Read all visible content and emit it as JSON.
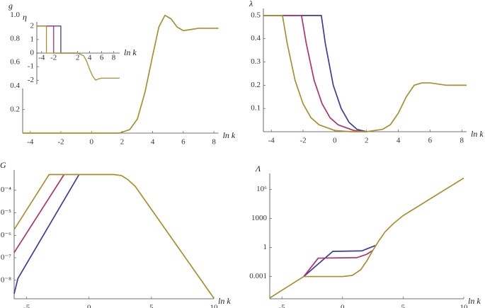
{
  "chart_data": [
    {
      "type": "line",
      "ylabel": "g",
      "xlabel": "ln k",
      "xlim": [
        -4.5,
        8.3
      ],
      "ylim": [
        0,
        1.04
      ],
      "xticks": [
        -4,
        -2,
        0,
        2,
        4,
        6,
        8
      ],
      "yticks": [
        0.2,
        0.4,
        0.6,
        0.8,
        {
          "value": 1,
          "label": "1.0"
        }
      ],
      "log_y": false,
      "series": [
        {
          "color": "#a8902e",
          "x": [
            -4.5,
            1.8,
            2.5,
            3,
            3.5,
            4,
            4.4,
            4.8,
            5.2,
            5.6,
            6,
            6.5,
            7,
            8.3
          ],
          "values": [
            0,
            0,
            0.03,
            0.12,
            0.35,
            0.66,
            0.9,
            1.0,
            0.97,
            0.9,
            0.87,
            0.88,
            0.89,
            0.89
          ]
        }
      ]
    },
    {
      "type": "line",
      "ylabel": "λ",
      "xlabel": "ln k",
      "xlim": [
        -4.5,
        8.3
      ],
      "ylim": [
        0,
        0.53
      ],
      "xticks": [
        -4,
        -2,
        0,
        2,
        4,
        6,
        8
      ],
      "yticks": [
        0.1,
        0.2,
        0.3,
        0.4,
        0.5
      ],
      "log_y": false,
      "series": [
        {
          "color": "#3b3ba0",
          "x": [
            -4.5,
            -0.85,
            -0.6,
            -0.1,
            0.4,
            0.9,
            1.4,
            2
          ],
          "values": [
            0.5,
            0.5,
            0.38,
            0.2,
            0.1,
            0.04,
            0.01,
            0
          ]
        },
        {
          "color": "#b0326c",
          "x": [
            -4.5,
            -2.1,
            -1.8,
            -1.3,
            -0.8,
            -0.3,
            0.2,
            1.2,
            2
          ],
          "values": [
            0.5,
            0.5,
            0.38,
            0.22,
            0.12,
            0.06,
            0.03,
            0.005,
            0
          ]
        },
        {
          "color": "#a8902e",
          "x": [
            -4.5,
            -3.3,
            -3,
            -2.5,
            -2,
            -1.5,
            -1,
            0,
            1,
            2,
            3,
            3.5,
            4,
            4.5,
            5,
            5.5,
            6,
            7,
            8.3
          ],
          "values": [
            0.5,
            0.5,
            0.38,
            0.22,
            0.12,
            0.06,
            0.03,
            0.005,
            0,
            0,
            0.01,
            0.03,
            0.08,
            0.15,
            0.2,
            0.21,
            0.21,
            0.2,
            0.2
          ]
        }
      ]
    },
    {
      "type": "line",
      "ylabel": "G",
      "xlabel": "ln k",
      "xlim": [
        -6,
        10
      ],
      "ylim": [
        1.5e-09,
        0.0008
      ],
      "xticks": [
        -5,
        0,
        5,
        10
      ],
      "yticks": [
        {
          "value": 1e-08,
          "label": "10⁻⁸"
        },
        {
          "value": 1e-07,
          "label": "10⁻⁷"
        },
        {
          "value": 1e-06,
          "label": "10⁻⁶"
        },
        {
          "value": 1e-05,
          "label": "10⁻⁵"
        },
        {
          "value": 0.0001,
          "label": "10⁻⁴"
        }
      ],
      "log_y": true,
      "series": [
        {
          "color": "#3b3ba0",
          "x": [
            -6,
            -5.7,
            -0.8
          ],
          "values": [
            2.5e-09,
            1.2e-08,
            0.0005
          ]
        },
        {
          "color": "#b0326c",
          "x": [
            -6,
            -2
          ],
          "values": [
            1.7e-07,
            0.0005
          ]
        },
        {
          "color": "#a8902e",
          "x": [
            -6,
            -3.2,
            2,
            2.6,
            3.1,
            3.7,
            10
          ],
          "values": [
            1.8e-06,
            0.0005,
            0.0005,
            0.00045,
            0.0003,
            0.00015,
            1.6e-09
          ]
        }
      ]
    },
    {
      "type": "line",
      "ylabel": "Λ",
      "xlabel": "ln k",
      "xlim": [
        -6,
        10
      ],
      "ylim": [
        5e-06,
        45000000
      ],
      "xticks": [
        -5,
        0,
        5,
        10
      ],
      "yticks": [
        0.001,
        1,
        1000,
        {
          "value": 1000000,
          "label": "10⁶"
        }
      ],
      "log_y": true,
      "series": [
        {
          "color": "#3b3ba0",
          "x": [
            -3.2,
            -0.8,
            1.6,
            2.2,
            2.7
          ],
          "values": [
            0.001,
            0.4,
            0.45,
            0.9,
            1.6
          ]
        },
        {
          "color": "#b0326c",
          "x": [
            -3.2,
            -2,
            1.2,
            2,
            2.5
          ],
          "values": [
            0.001,
            0.08,
            0.09,
            0.2,
            0.5
          ]
        },
        {
          "color": "#a8902e",
          "x": [
            -6,
            -3.2,
            0,
            0.8,
            1.5,
            2,
            2.5,
            3,
            3.5,
            4.2,
            5,
            10
          ],
          "values": [
            6e-06,
            0.001,
            0.001,
            0.0013,
            0.005,
            0.04,
            0.5,
            5,
            40,
            300,
            2000,
            15000000
          ]
        }
      ]
    },
    {
      "type": "line",
      "ylabel": "η",
      "xlabel": "ln k",
      "xlim": [
        -4.8,
        9
      ],
      "ylim": [
        -2.3,
        2.3
      ],
      "xticks": [
        -4,
        -2,
        2,
        4,
        6,
        8
      ],
      "yticks": [
        -2,
        -1,
        0,
        1,
        2
      ],
      "log_y": false,
      "series": [
        {
          "color": "#3b3ba0",
          "x": [
            -4.8,
            -0.8,
            -0.8,
            2
          ],
          "values": [
            2,
            2,
            0,
            0
          ]
        },
        {
          "color": "#b0326c",
          "x": [
            -4.8,
            -2,
            -2,
            2
          ],
          "values": [
            2,
            2,
            0,
            0
          ]
        },
        {
          "color": "#a8902e",
          "x": [
            -4.8,
            -3.2,
            -3.2,
            2,
            3,
            3.5,
            4,
            4.5,
            5,
            5.5,
            6,
            7,
            9
          ],
          "values": [
            2,
            2,
            0,
            0,
            -0.2,
            -0.6,
            -1.2,
            -1.7,
            -2,
            -1.9,
            -1.85,
            -1.85,
            -1.85
          ]
        }
      ]
    }
  ]
}
